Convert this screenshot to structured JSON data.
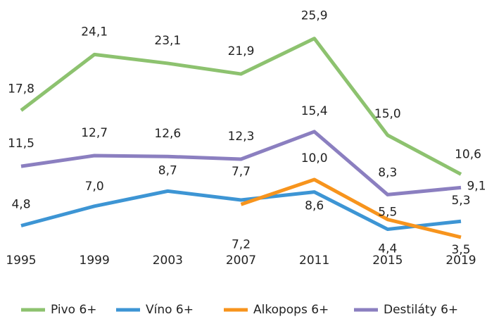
{
  "chart_data": {
    "type": "line",
    "categories": [
      "1995",
      "1999",
      "2003",
      "2007",
      "2011",
      "2015",
      "2019"
    ],
    "series": [
      {
        "name": "Pivo 6+",
        "color": "#8dc26f",
        "values": [
          17.8,
          24.1,
          23.1,
          21.9,
          25.9,
          15.0,
          10.6
        ],
        "value_labels": [
          "17,8",
          "24,1",
          "23,1",
          "21,9",
          "25,9",
          "15,0",
          "10,6"
        ]
      },
      {
        "name": "Víno 6+",
        "color": "#3d95d4",
        "values": [
          4.8,
          7.0,
          8.7,
          7.7,
          8.6,
          4.4,
          5.3
        ],
        "value_labels": [
          "4,8",
          "7,0",
          "8,7",
          "7,7",
          "8,6",
          "4,4",
          "5,3"
        ]
      },
      {
        "name": "Alkopops 6+",
        "color": "#f7941d",
        "values": [
          null,
          null,
          null,
          7.2,
          10.0,
          5.5,
          3.5
        ],
        "value_labels": [
          null,
          null,
          null,
          "7,2",
          "10,0",
          "5,5",
          "3,5"
        ]
      },
      {
        "name": "Destiláty 6+",
        "color": "#8b7fc0",
        "values": [
          11.5,
          12.7,
          12.6,
          12.3,
          15.4,
          8.3,
          9.1
        ],
        "value_labels": [
          "11,5",
          "12,7",
          "12,6",
          "12,3",
          "15,4",
          "8,3",
          "9,1"
        ]
      }
    ]
  }
}
